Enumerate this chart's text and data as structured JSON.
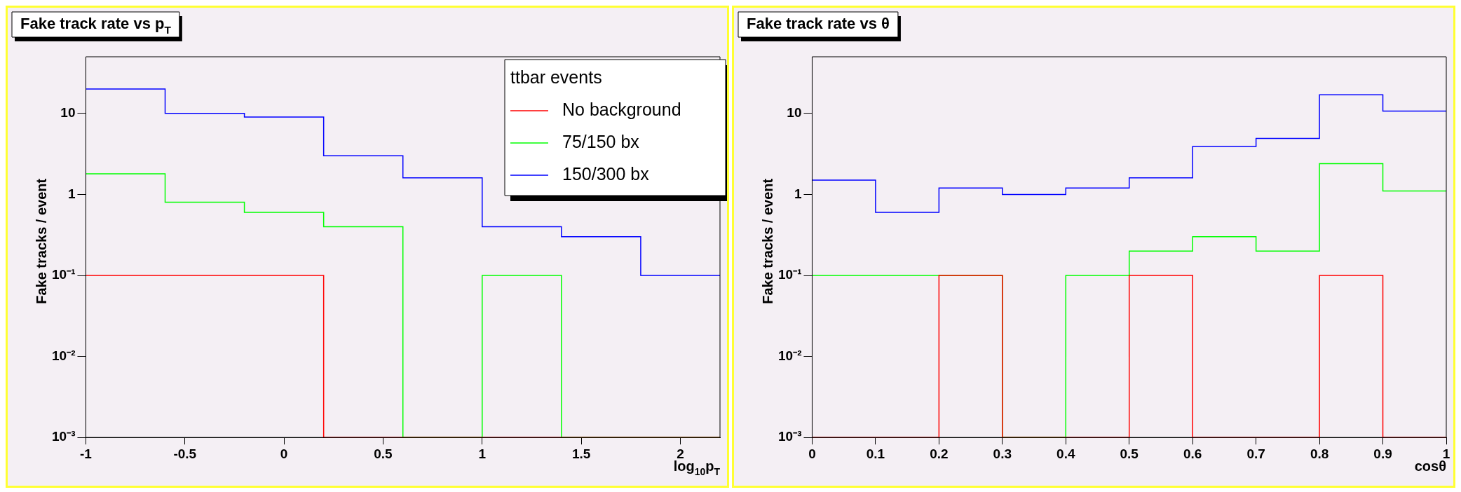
{
  "chart_data": [
    {
      "type": "histogram",
      "title": "Fake track rate vs p$_{T}$",
      "xlabel": "log$_{10}$p$_{T}$",
      "ylabel": "Fake tracks / event",
      "legend_title": "ttbar events",
      "legend": "top right",
      "grid": false,
      "log": "y",
      "bins": [
        -1,
        -0.6,
        -0.2,
        0.2,
        0.6,
        1.0,
        1.4,
        1.8,
        2.2
      ],
      "xlim": [
        -1,
        2.2
      ],
      "xticks": [
        -1,
        -0.5,
        0,
        0.5,
        1,
        1.5,
        2
      ],
      "ylim": [
        0.001,
        50
      ],
      "yticks": [
        {
          "value": 0.001,
          "label": "10⁻³"
        },
        {
          "value": 0.01,
          "label": "10⁻²"
        },
        {
          "value": 0.1,
          "label": "10⁻¹"
        },
        {
          "value": 1,
          "label": "1"
        },
        {
          "value": 10,
          "label": "10"
        }
      ],
      "series": [
        {
          "name": "No background",
          "color": "#ff0000",
          "values": [
            0.1,
            0.1,
            0.1,
            0.001,
            0.001,
            0.001,
            0.001,
            0.001
          ]
        },
        {
          "name": "75/150 bx",
          "color": "#00ff00",
          "values": [
            1.8,
            0.8,
            0.6,
            0.4,
            0.001,
            0.1,
            0.001,
            0.001
          ]
        },
        {
          "name": "150/300 bx",
          "color": "#0000ff",
          "values": [
            20,
            10,
            9,
            3,
            1.6,
            0.4,
            0.3,
            0.1
          ]
        }
      ]
    },
    {
      "type": "histogram",
      "title": "Fake track rate vs θ",
      "xlabel": "cosθ",
      "ylabel": "Fake tracks / event",
      "grid": false,
      "log": "y",
      "bins": [
        0,
        0.1,
        0.2,
        0.3,
        0.4,
        0.5,
        0.6,
        0.7,
        0.8,
        0.9,
        1.0
      ],
      "xlim": [
        0,
        1
      ],
      "xticks": [
        0,
        0.1,
        0.2,
        0.3,
        0.4,
        0.5,
        0.6,
        0.7,
        0.8,
        0.9,
        1
      ],
      "ylim": [
        0.001,
        50
      ],
      "yticks": [
        {
          "value": 0.001,
          "label": "10⁻³"
        },
        {
          "value": 0.01,
          "label": "10⁻²"
        },
        {
          "value": 0.1,
          "label": "10⁻¹"
        },
        {
          "value": 1,
          "label": "1"
        },
        {
          "value": 10,
          "label": "10"
        }
      ],
      "series": [
        {
          "color": "#ff0000",
          "values": [
            0.001,
            0.001,
            0.1,
            0.001,
            0.001,
            0.1,
            0.001,
            0.001,
            0.1,
            0.001
          ]
        },
        {
          "color": "#00ff00",
          "values": [
            0.1,
            0.1,
            0.1,
            0.001,
            0.1,
            0.2,
            0.3,
            0.2,
            2.4,
            1.1
          ]
        },
        {
          "color": "#0000ff",
          "values": [
            1.5,
            0.6,
            1.2,
            1.0,
            1.2,
            1.6,
            3.9,
            4.9,
            17,
            10.7
          ]
        }
      ]
    }
  ]
}
